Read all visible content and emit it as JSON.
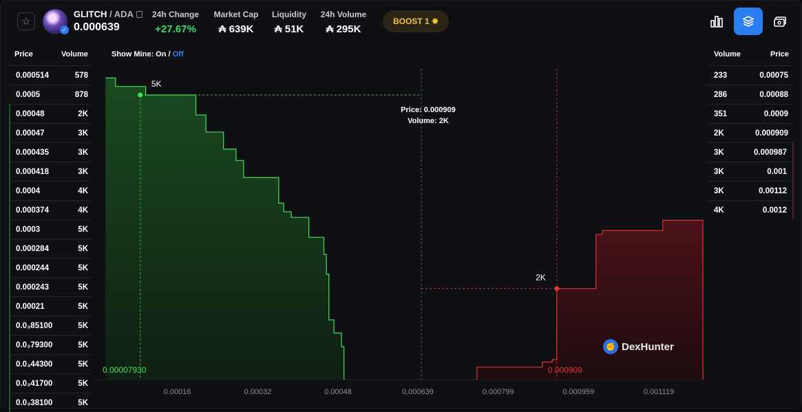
{
  "header": {
    "favorite_icon": "star-icon",
    "token": "GLITCH",
    "quote": " / ADA",
    "price": "0.000639",
    "stats": [
      {
        "label": "24h Change",
        "value": "+27.67%"
      },
      {
        "label": "Market Cap",
        "value": "₳ 639K"
      },
      {
        "label": "Liquidity",
        "value": "₳ 51K"
      },
      {
        "label": "24h Volume",
        "value": "₳ 295K"
      }
    ],
    "boost_label": "BOOST 1 ✸",
    "buttons": [
      "bar-chart-icon",
      "layers-icon",
      "money-icon"
    ]
  },
  "bids": {
    "price_header": "Price",
    "volume_header": "Volume",
    "rows": [
      {
        "price": "0.000514",
        "volume": "578"
      },
      {
        "price": "0.0005",
        "volume": "878"
      },
      {
        "price": "0.00048",
        "volume": "2K"
      },
      {
        "price": "0.00047",
        "volume": "3K"
      },
      {
        "price": "0.000435",
        "volume": "3K"
      },
      {
        "price": "0.000418",
        "volume": "3K"
      },
      {
        "price": "0.0004",
        "volume": "4K"
      },
      {
        "price": "0.000374",
        "volume": "4K"
      },
      {
        "price": "0.0003",
        "volume": "5K"
      },
      {
        "price": "0.000284",
        "volume": "5K"
      },
      {
        "price": "0.000244",
        "volume": "5K"
      },
      {
        "price": "0.000243",
        "volume": "5K"
      },
      {
        "price": "0.00021",
        "volume": "5K"
      },
      {
        "price": "0.0₃85100",
        "volume": "5K"
      },
      {
        "price": "0.0₃79300",
        "volume": "5K"
      },
      {
        "price": "0.0₃44300",
        "volume": "5K"
      },
      {
        "price": "0.0₃41700",
        "volume": "5K"
      },
      {
        "price": "0.0₃38100",
        "volume": "5K"
      }
    ]
  },
  "show_mine": {
    "label": "Show Mine:",
    "on": "On",
    "separator": " / ",
    "off": "Off"
  },
  "asks": {
    "volume_header": "Volume",
    "price_header": "Price",
    "rows": [
      {
        "volume": "233",
        "price": "0.00075"
      },
      {
        "volume": "286",
        "price": "0.00088"
      },
      {
        "volume": "351",
        "price": "0.0009"
      },
      {
        "volume": "2K",
        "price": "0.000909"
      },
      {
        "volume": "3K",
        "price": "0.000987"
      },
      {
        "volume": "3K",
        "price": "0.001"
      },
      {
        "volume": "3K",
        "price": "0.00112"
      },
      {
        "volume": "4K",
        "price": "0.0012"
      }
    ]
  },
  "chart_data": {
    "type": "area",
    "x_ticks": [
      "0.00016",
      "0.00032",
      "0.00048",
      "0.000639",
      "0.000799",
      "0.000959",
      "0.001119"
    ],
    "bid_series": {
      "color": "#46e05a",
      "steps": [
        [
          1e-05,
          5300
        ],
        [
          3e-05,
          5150
        ],
        [
          9e-05,
          5000
        ],
        [
          0.00019,
          4650
        ],
        [
          0.00021,
          4350
        ],
        [
          0.000245,
          4050
        ],
        [
          0.00027,
          3850
        ],
        [
          0.000285,
          3550
        ],
        [
          0.000355,
          3100
        ],
        [
          0.000365,
          2950
        ],
        [
          0.00038,
          2850
        ],
        [
          0.000415,
          2500
        ],
        [
          0.000445,
          2200
        ],
        [
          0.00045,
          1850
        ],
        [
          0.000455,
          1050
        ],
        [
          0.000465,
          820
        ],
        [
          0.00048,
          580
        ],
        [
          0.000485,
          0
        ]
      ]
    },
    "ask_series": {
      "color": "#e03434",
      "steps": [
        [
          0.00075,
          220
        ],
        [
          0.00088,
          310
        ],
        [
          0.0009,
          350
        ],
        [
          0.000909,
          1600
        ],
        [
          0.000987,
          2550
        ],
        [
          0.001,
          2620
        ],
        [
          0.00112,
          2620
        ],
        [
          0.00112,
          2800
        ],
        [
          0.0012,
          2800
        ]
      ]
    },
    "markers": [
      {
        "label": "5K",
        "x_label": "0.00007930",
        "color": "#46e05a"
      },
      {
        "label": "2K",
        "x_label": "0.000909",
        "color": "#e03434"
      }
    ],
    "tooltip": {
      "price_label": "Price:",
      "price": "0.000909",
      "volume_label": "Volume:",
      "volume": "2K"
    }
  },
  "watermark": {
    "text": "DexHunter"
  }
}
